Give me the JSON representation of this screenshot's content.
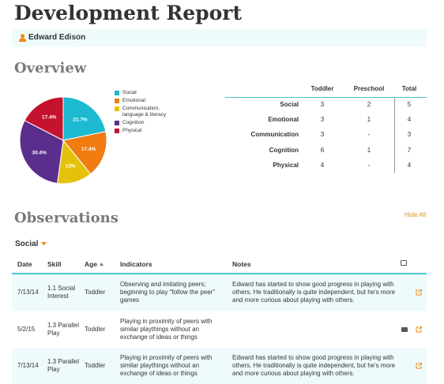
{
  "header": {
    "title": "Development Report",
    "child": "Edward Edison"
  },
  "overview": {
    "heading": "Overview",
    "chart": {
      "type": "pie",
      "categories": [
        "Social",
        "Emotional",
        "Communication, language & literacy",
        "Cognition",
        "Physical"
      ],
      "values": [
        21.7,
        17.4,
        13,
        30.4,
        17.4
      ],
      "value_labels": [
        "21.7%",
        "17.4%",
        "13%",
        "30.4%",
        "17.4%"
      ],
      "colors": [
        "#1cb9d1",
        "#f07c12",
        "#e4c20c",
        "#5a2e8c",
        "#c4122f"
      ]
    },
    "summary": {
      "columns": [
        "Toddler",
        "Preschool",
        "Total"
      ],
      "rows": [
        [
          "Social",
          3,
          2,
          5
        ],
        [
          "Emotional",
          3,
          1,
          4
        ],
        [
          "Communication",
          3,
          "-",
          3
        ],
        [
          "Cognition",
          6,
          1,
          7
        ],
        [
          "Physical",
          4,
          "-",
          4
        ]
      ]
    }
  },
  "observations": {
    "heading": "Observations",
    "toggle": "Hide All",
    "section": "Social",
    "columns": [
      "Date",
      "Skill",
      "Age",
      "Indicators",
      "Notes"
    ],
    "rows": [
      {
        "date": "7/13/14",
        "skill": "1.1 Social Interest",
        "age": "Toddler",
        "indicators": "Observing and imitating peers; beginning to play “follow the peer” games",
        "notes": "Edward has started to show good progress in playing with others. He traditionally is quite independent, but he's more and more curious about playing with others."
      },
      {
        "date": "5/2/15",
        "skill": "1.3 Parallel Play",
        "age": "Toddler",
        "indicators": "Playing in proximity of peers with similar playthings without an exchange of ideas or things"
      },
      {
        "date": "7/13/14",
        "skill": "1.3 Parallel Play",
        "age": "Toddler",
        "indicators": "Playing in proximity of peers with similar playthings without an exchange of ideas or things",
        "notes": "Edward has started to show good progress in playing with others. He traditionally is quite independent, but he's more and more curious about playing with others."
      }
    ]
  }
}
